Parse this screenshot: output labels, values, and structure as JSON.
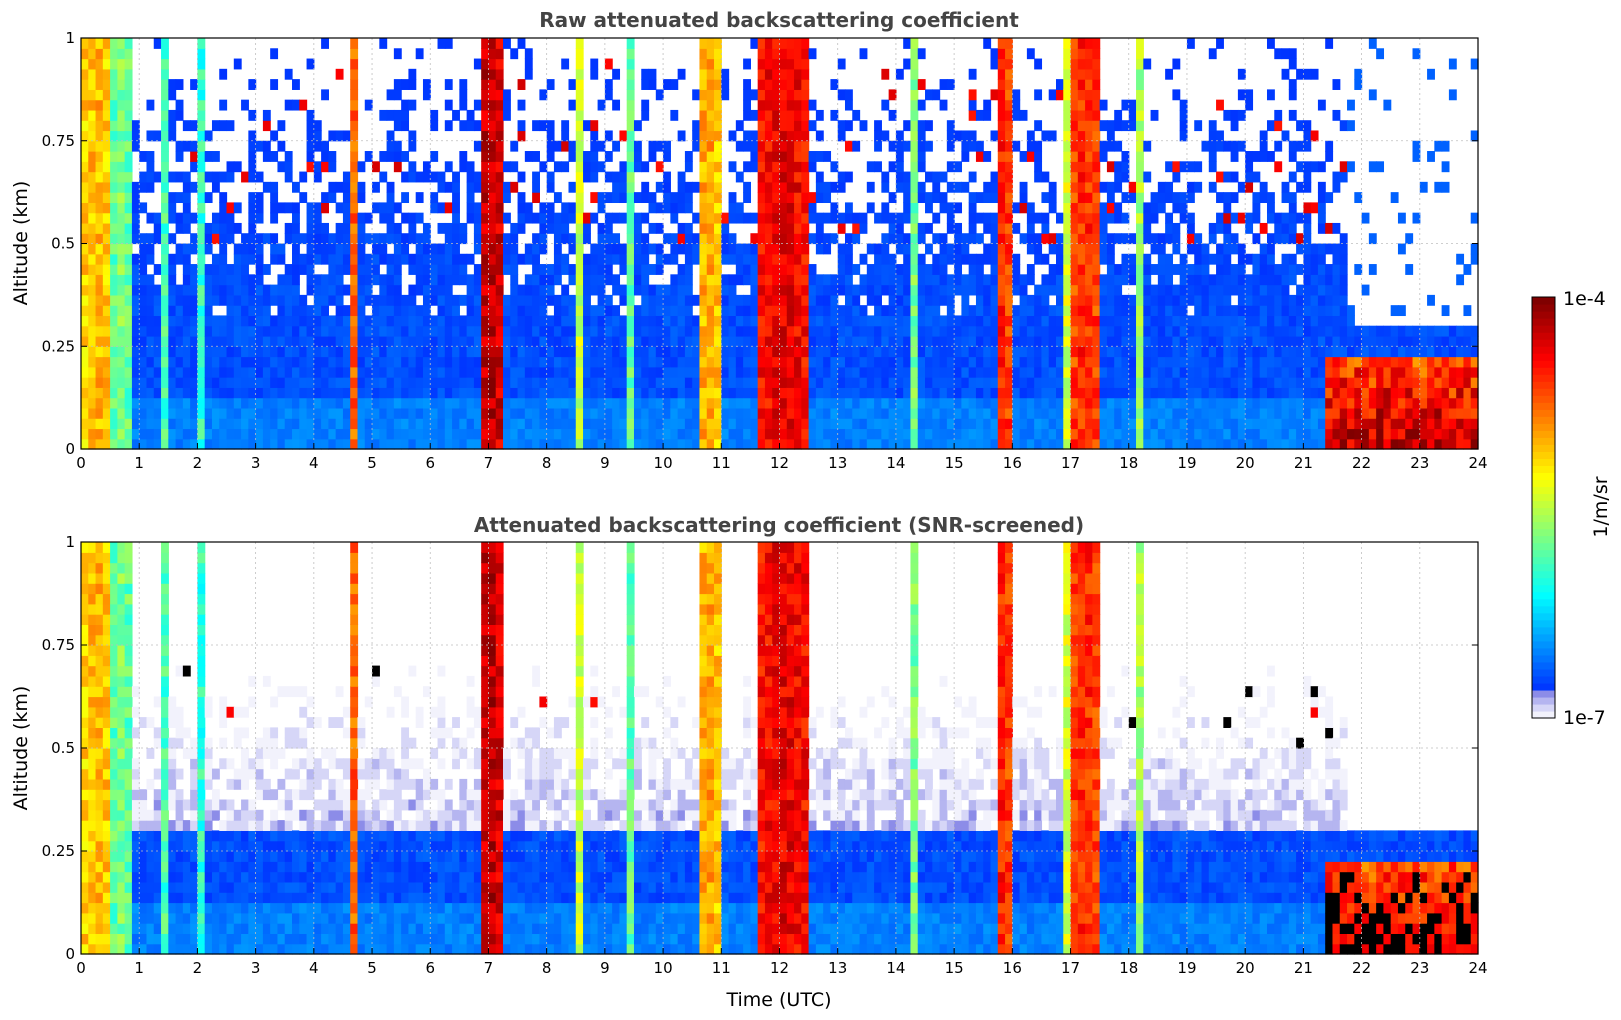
{
  "chart_data": [
    {
      "type": "heatmap",
      "title": "Raw attenuated backscattering coefficient",
      "xlabel": "",
      "ylabel": "Altitude (km)",
      "xlim": [
        0,
        24
      ],
      "ylim": [
        0,
        1
      ],
      "x_ticks": [
        "0",
        "1",
        "2",
        "3",
        "4",
        "5",
        "6",
        "7",
        "8",
        "9",
        "10",
        "11",
        "12",
        "13",
        "14",
        "15",
        "16",
        "17",
        "18",
        "19",
        "20",
        "21",
        "22",
        "23",
        "24"
      ],
      "y_ticks": [
        "0",
        "0.25",
        "0.5",
        "0.75",
        "1"
      ],
      "grid": true,
      "colormap": "jet",
      "screened": false,
      "high_columns": [
        {
          "start": 0.0,
          "end": 0.55,
          "level": 0.7
        },
        {
          "start": 0.55,
          "end": 0.85,
          "level": 0.5
        },
        {
          "start": 1.35,
          "end": 1.5,
          "level": 0.45
        },
        {
          "start": 2.05,
          "end": 2.15,
          "level": 0.45
        },
        {
          "start": 4.6,
          "end": 4.72,
          "level": 0.8
        },
        {
          "start": 6.85,
          "end": 7.2,
          "level": 0.95
        },
        {
          "start": 8.45,
          "end": 8.58,
          "level": 0.6
        },
        {
          "start": 9.35,
          "end": 9.45,
          "level": 0.5
        },
        {
          "start": 10.6,
          "end": 10.95,
          "level": 0.72
        },
        {
          "start": 11.65,
          "end": 12.55,
          "level": 0.9
        },
        {
          "start": 14.25,
          "end": 14.35,
          "level": 0.5
        },
        {
          "start": 15.7,
          "end": 15.95,
          "level": 0.85
        },
        {
          "start": 16.9,
          "end": 17.02,
          "level": 0.6
        },
        {
          "start": 17.05,
          "end": 17.45,
          "level": 0.85
        },
        {
          "start": 18.1,
          "end": 18.25,
          "level": 0.55
        }
      ],
      "low_layer": {
        "start": 21.4,
        "end": 24.0,
        "top": 0.23,
        "level": 0.95
      },
      "clear_region": {
        "start": 21.7,
        "end": 24.0,
        "bottom": 0.3
      }
    },
    {
      "type": "heatmap",
      "title": "Attenuated backscattering coefficient (SNR-screened)",
      "xlabel": "Time (UTC)",
      "ylabel": "Altitude (km)",
      "xlim": [
        0,
        24
      ],
      "ylim": [
        0,
        1
      ],
      "x_ticks": [
        "0",
        "1",
        "2",
        "3",
        "4",
        "5",
        "6",
        "7",
        "8",
        "9",
        "10",
        "11",
        "12",
        "13",
        "14",
        "15",
        "16",
        "17",
        "18",
        "19",
        "20",
        "21",
        "22",
        "23",
        "24"
      ],
      "y_ticks": [
        "0",
        "0.25",
        "0.5",
        "0.75",
        "1"
      ],
      "grid": true,
      "colormap": "jet",
      "screened": true,
      "high_columns": [
        {
          "start": 0.0,
          "end": 0.55,
          "level": 0.7
        },
        {
          "start": 0.55,
          "end": 0.85,
          "level": 0.5
        },
        {
          "start": 1.35,
          "end": 1.5,
          "level": 0.45
        },
        {
          "start": 2.05,
          "end": 2.15,
          "level": 0.45
        },
        {
          "start": 4.6,
          "end": 4.72,
          "level": 0.8
        },
        {
          "start": 6.85,
          "end": 7.2,
          "level": 0.95
        },
        {
          "start": 8.45,
          "end": 8.58,
          "level": 0.6
        },
        {
          "start": 9.35,
          "end": 9.45,
          "level": 0.5
        },
        {
          "start": 10.6,
          "end": 10.95,
          "level": 0.72
        },
        {
          "start": 11.65,
          "end": 12.55,
          "level": 0.9
        },
        {
          "start": 14.25,
          "end": 14.35,
          "level": 0.5
        },
        {
          "start": 15.7,
          "end": 15.95,
          "level": 0.85
        },
        {
          "start": 16.9,
          "end": 17.02,
          "level": 0.6
        },
        {
          "start": 17.05,
          "end": 17.45,
          "level": 0.85
        },
        {
          "start": 18.1,
          "end": 18.25,
          "level": 0.55
        }
      ],
      "low_layer": {
        "start": 21.4,
        "end": 24.0,
        "top": 0.23,
        "level": 0.95
      },
      "clear_region": {
        "start": 21.7,
        "end": 24.0,
        "bottom": 0.3
      }
    }
  ],
  "colorbar": {
    "label": "1/m/sr",
    "max_label": "1e-4",
    "min_label": "1e-7",
    "colormap": "jet",
    "low_end_colors": [
      "#f2f2fc",
      "#d6d6f7",
      "#b5b5f0",
      "#8c8ce8"
    ]
  },
  "colors": {
    "title": "#444444",
    "grid": "#bfbfbf",
    "background": "#ffffff",
    "cloud_saturated": "#000000"
  }
}
